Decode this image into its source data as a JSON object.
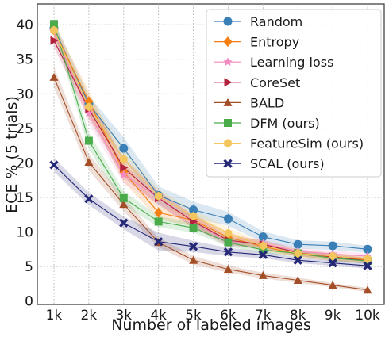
{
  "chart_data": {
    "type": "line",
    "xlabel": "Number of labeled images",
    "ylabel": "ECE % (5 trials)",
    "categories": [
      "1k",
      "2k",
      "3k",
      "4k",
      "5k",
      "6k",
      "7k",
      "8k",
      "9k",
      "10k"
    ],
    "yticks": [
      0,
      5,
      10,
      15,
      20,
      25,
      30,
      35,
      40
    ],
    "ylim": [
      -0.5,
      43
    ],
    "grid": true,
    "legend_position": "top-right",
    "series": [
      {
        "name": "Random",
        "color": "#3a7fb6",
        "marker": "circle",
        "values": [
          39.5,
          28.5,
          22.1,
          15.3,
          13.2,
          11.9,
          9.3,
          8.2,
          8.0,
          7.5
        ],
        "band": [
          1.0,
          1.2,
          1.6,
          1.3,
          1.2,
          1.0,
          0.8,
          0.6,
          0.6,
          0.5
        ]
      },
      {
        "name": "Entropy",
        "color": "#f57f11",
        "marker": "diamond",
        "values": [
          39.2,
          28.9,
          18.7,
          12.8,
          11.7,
          9.2,
          7.9,
          6.8,
          6.3,
          6.0
        ],
        "band": [
          1.0,
          1.5,
          1.5,
          1.0,
          0.9,
          0.8,
          0.6,
          0.5,
          0.5,
          0.4
        ]
      },
      {
        "name": "Learning loss",
        "color": "#f48ac2",
        "marker": "star",
        "values": [
          39.0,
          27.2,
          18.3,
          15.0,
          11.5,
          8.5,
          8.3,
          7.2,
          6.8,
          6.5
        ],
        "band": [
          1.0,
          1.5,
          1.3,
          1.0,
          0.9,
          0.7,
          0.6,
          0.5,
          0.5,
          0.4
        ]
      },
      {
        "name": "CoreSet",
        "color": "#b3223c",
        "marker": "triangle-right",
        "values": [
          37.7,
          27.8,
          19.3,
          14.9,
          11.5,
          8.8,
          8.2,
          7.0,
          6.4,
          5.8
        ],
        "band": [
          1.0,
          1.4,
          1.4,
          1.0,
          0.9,
          0.7,
          0.6,
          0.5,
          0.5,
          0.4
        ]
      },
      {
        "name": "BALD",
        "color": "#a34e26",
        "marker": "triangle-up",
        "values": [
          32.4,
          20.1,
          14.0,
          8.5,
          5.9,
          4.6,
          3.7,
          3.0,
          2.3,
          1.6
        ],
        "band": [
          1.5,
          1.2,
          1.0,
          0.7,
          0.6,
          0.5,
          0.4,
          0.4,
          0.3,
          0.3
        ]
      },
      {
        "name": "DFM (ours)",
        "color": "#4aab4b",
        "marker": "square",
        "values": [
          40.1,
          23.2,
          14.9,
          11.5,
          10.6,
          8.5,
          7.4,
          6.9,
          6.2,
          5.8
        ],
        "band": [
          1.0,
          1.2,
          1.0,
          0.8,
          0.7,
          0.6,
          0.5,
          0.4,
          0.4,
          0.4
        ]
      },
      {
        "name": "FeatureSim (ours)",
        "color": "#f3c65d",
        "marker": "hexagon",
        "values": [
          39.2,
          28.1,
          20.5,
          15.2,
          12.3,
          9.8,
          8.0,
          6.9,
          6.5,
          6.1
        ],
        "band": [
          1.0,
          1.5,
          1.5,
          1.0,
          0.9,
          0.8,
          0.6,
          0.5,
          0.5,
          0.4
        ]
      },
      {
        "name": "SCAL (ours)",
        "color": "#252777",
        "marker": "x",
        "values": [
          19.7,
          14.8,
          11.3,
          8.6,
          7.9,
          7.1,
          6.7,
          5.9,
          5.5,
          5.1
        ],
        "band": [
          1.0,
          0.9,
          0.9,
          1.3,
          0.8,
          0.6,
          0.5,
          0.4,
          0.4,
          0.4
        ]
      }
    ]
  }
}
